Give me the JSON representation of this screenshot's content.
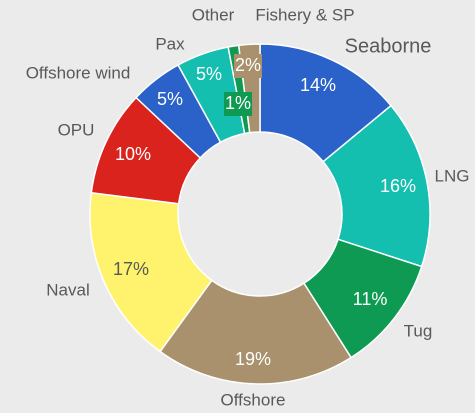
{
  "chart_data": {
    "type": "donut",
    "categories": [
      "Seaborne",
      "LNG",
      "Tug",
      "Offshore",
      "Naval",
      "OPU",
      "Offshore wind",
      "Pax",
      "Other",
      "Fishery & SP"
    ],
    "values": [
      14,
      16,
      11,
      19,
      17,
      10,
      5,
      5,
      1,
      2
    ],
    "value_labels": [
      "14%",
      "16%",
      "11%",
      "19%",
      "17%",
      "10%",
      "5%",
      "5%",
      "1%",
      "2%"
    ],
    "colors": [
      "#2a62c9",
      "#14bfb0",
      "#0e9a52",
      "#a8916c",
      "#fff36e",
      "#d9231c",
      "#2a62c9",
      "#14bfb0",
      "#0e9a52",
      "#a8916c"
    ]
  }
}
